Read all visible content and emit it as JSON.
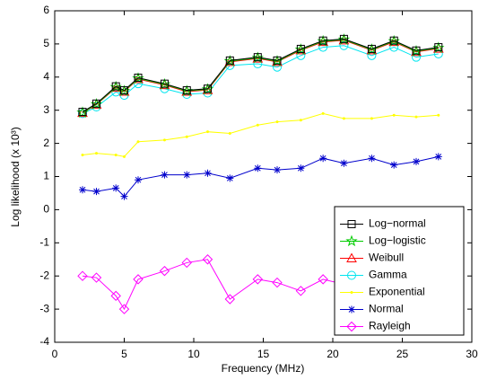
{
  "chart_data": {
    "type": "line",
    "xlabel": "Frequency (MHz)",
    "ylabel": "Log likelihood (x 10³)",
    "x": [
      2,
      3,
      4.4,
      5,
      6,
      7.9,
      9.5,
      11,
      12.6,
      14.6,
      16,
      17.7,
      19.3,
      20.8,
      22.8,
      24.4,
      26,
      27.6
    ],
    "xlim": [
      0,
      30
    ],
    "xticks": [
      0,
      5,
      10,
      15,
      20,
      25,
      30
    ],
    "ylim": [
      -4,
      6
    ],
    "yticks": [
      -4,
      -3,
      -2,
      -1,
      0,
      1,
      2,
      3,
      4,
      5,
      6
    ],
    "grid": false,
    "legend": "lower right",
    "series": [
      {
        "name": "Log−normal",
        "color": "#000000",
        "marker": "square",
        "values": [
          2.95,
          3.2,
          3.72,
          3.6,
          3.98,
          3.8,
          3.6,
          3.65,
          4.5,
          4.6,
          4.5,
          4.85,
          5.1,
          5.15,
          4.85,
          5.1,
          4.8,
          4.9
        ]
      },
      {
        "name": "Log−logistic",
        "color": "#00cc00",
        "marker": "star",
        "values": [
          2.93,
          3.18,
          3.7,
          3.58,
          3.96,
          3.78,
          3.58,
          3.63,
          4.48,
          4.58,
          4.48,
          4.83,
          5.08,
          5.13,
          4.83,
          5.08,
          4.78,
          4.88
        ]
      },
      {
        "name": "Weibull",
        "color": "#ff0000",
        "marker": "triangle",
        "values": [
          2.92,
          3.17,
          3.68,
          3.56,
          3.94,
          3.76,
          3.56,
          3.61,
          4.46,
          4.56,
          4.46,
          4.81,
          5.06,
          5.11,
          4.81,
          5.06,
          4.76,
          4.86
        ]
      },
      {
        "name": "Gamma",
        "color": "#00e5ee",
        "marker": "circle",
        "values": [
          2.9,
          3.1,
          3.55,
          3.45,
          3.8,
          3.65,
          3.48,
          3.52,
          4.35,
          4.4,
          4.3,
          4.65,
          4.9,
          4.95,
          4.65,
          4.9,
          4.6,
          4.7
        ]
      },
      {
        "name": "Exponential",
        "color": "#ffff00",
        "marker": "point",
        "values": [
          1.65,
          1.7,
          1.65,
          1.6,
          2.05,
          2.1,
          2.2,
          2.35,
          2.3,
          2.55,
          2.65,
          2.7,
          2.9,
          2.75,
          2.75,
          2.85,
          2.8,
          2.85
        ]
      },
      {
        "name": "Normal",
        "color": "#0000cc",
        "marker": "asterisk",
        "values": [
          0.6,
          0.55,
          0.65,
          0.4,
          0.9,
          1.05,
          1.05,
          1.1,
          0.95,
          1.25,
          1.2,
          1.25,
          1.55,
          1.4,
          1.55,
          1.35,
          1.45,
          1.6
        ]
      },
      {
        "name": "Rayleigh",
        "color": "#ff00ff",
        "marker": "diamond",
        "values": [
          -2,
          -2.05,
          -2.6,
          -3,
          -2.1,
          -1.85,
          -1.6,
          -1.5,
          -2.7,
          -2.1,
          -2.2,
          -2.45,
          -2.1,
          -2.25,
          -2.3,
          -2.2,
          -2.3,
          -2.2
        ]
      }
    ]
  }
}
